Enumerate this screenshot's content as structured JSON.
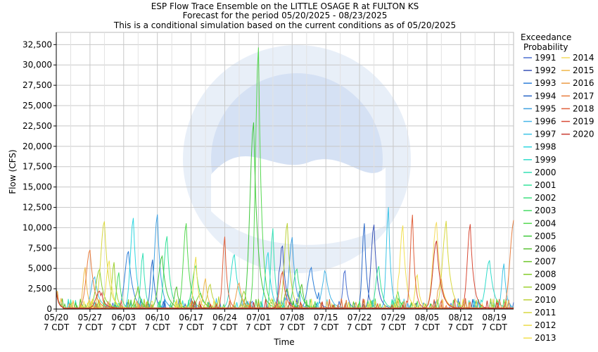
{
  "chart_data": {
    "type": "line",
    "title_lines": [
      "ESP Flow Trace Ensemble on the LITTLE OSAGE R at FULTON KS",
      "Forecast for the period 05/20/2025 - 08/23/2025",
      "This is a conditional simulation based on the current conditions as of 05/20/2025"
    ],
    "xlabel": "Time",
    "ylabel": "Flow (CFS)",
    "x_start": "2025-05-20",
    "x_end": "2025-08-23",
    "ylim": [
      0,
      34000
    ],
    "grid": true,
    "y_ticks": [
      0,
      2500,
      5000,
      7500,
      10000,
      12500,
      15000,
      17500,
      20000,
      22500,
      25000,
      27500,
      30000,
      32500
    ],
    "y_tick_labels": [
      "0",
      "2,500",
      "5,000",
      "7,500",
      "10,000",
      "12,500",
      "15,000",
      "17,500",
      "20,000",
      "22,500",
      "25,000",
      "27,500",
      "30,000",
      "32,500"
    ],
    "x_ticks": [
      {
        "date": "2025-05-20",
        "label1": "05/20",
        "label2": "7 CDT"
      },
      {
        "date": "2025-05-27",
        "label1": "05/27",
        "label2": "7 CDT"
      },
      {
        "date": "2025-06-03",
        "label1": "06/03",
        "label2": "7 CDT"
      },
      {
        "date": "2025-06-10",
        "label1": "06/10",
        "label2": "7 CDT"
      },
      {
        "date": "2025-06-17",
        "label1": "06/17",
        "label2": "7 CDT"
      },
      {
        "date": "2025-06-24",
        "label1": "06/24",
        "label2": "7 CDT"
      },
      {
        "date": "2025-07-01",
        "label1": "07/01",
        "label2": "7 CDT"
      },
      {
        "date": "2025-07-08",
        "label1": "07/08",
        "label2": "7 CDT"
      },
      {
        "date": "2025-07-15",
        "label1": "07/15",
        "label2": "7 CDT"
      },
      {
        "date": "2025-07-22",
        "label1": "07/22",
        "label2": "7 CDT"
      },
      {
        "date": "2025-07-29",
        "label1": "07/29",
        "label2": "7 CDT"
      },
      {
        "date": "2025-08-05",
        "label1": "08/05",
        "label2": "7 CDT"
      },
      {
        "date": "2025-08-12",
        "label1": "08/12",
        "label2": "7 CDT"
      },
      {
        "date": "2025-08-19",
        "label1": "08/19",
        "label2": "7 CDT"
      }
    ],
    "legend_title_lines": [
      "Exceedance",
      "Probability"
    ],
    "legend_placement": "right",
    "watermark": "NATIONAL OCEANIC AND ATMOSPHERIC ADMINISTRATION · U.S. DEPARTMENT OF COMMERCE · NOAA",
    "series": [
      {
        "name": "1991",
        "color": "#4a6fd0",
        "peaks": [
          [
            "2025-07-19",
            4600
          ]
        ]
      },
      {
        "name": "1992",
        "color": "#3a55b8",
        "peaks": [
          [
            "2025-07-06",
            7600
          ],
          [
            "2025-07-25",
            10300
          ]
        ]
      },
      {
        "name": "1993",
        "color": "#2f7fd8",
        "peaks": [
          [
            "2025-06-04",
            7000
          ],
          [
            "2025-07-12",
            5000
          ]
        ]
      },
      {
        "name": "1994",
        "color": "#2a68c8",
        "peaks": [
          [
            "2025-06-09",
            6000
          ],
          [
            "2025-07-23",
            10400
          ]
        ]
      },
      {
        "name": "1995",
        "color": "#3fa0e0",
        "peaks": [
          [
            "2025-06-10",
            11500
          ],
          [
            "2025-07-08",
            8700
          ]
        ]
      },
      {
        "name": "1996",
        "color": "#47b6e8",
        "peaks": [
          [
            "2025-05-28",
            3800
          ],
          [
            "2025-07-15",
            4300
          ]
        ]
      },
      {
        "name": "1997",
        "color": "#3cc4e6",
        "peaks": [
          [
            "2025-07-28",
            12400
          ],
          [
            "2025-08-21",
            5500
          ]
        ]
      },
      {
        "name": "1998",
        "color": "#2fd6e0",
        "peaks": [
          [
            "2025-06-05",
            11100
          ],
          [
            "2025-07-03",
            6900
          ]
        ]
      },
      {
        "name": "1999",
        "color": "#30dccb",
        "peaks": [
          [
            "2025-06-26",
            6600
          ],
          [
            "2025-08-18",
            5900
          ]
        ]
      },
      {
        "name": "2000",
        "color": "#33e0b5",
        "peaks": [
          [
            "2025-06-07",
            6800
          ],
          [
            "2025-07-04",
            9800
          ]
        ]
      },
      {
        "name": "2001",
        "color": "#36e29a",
        "peaks": [
          [
            "2025-06-12",
            8800
          ],
          [
            "2025-07-26",
            5200
          ]
        ]
      },
      {
        "name": "2002",
        "color": "#3de07e",
        "peaks": [
          [
            "2025-06-18",
            5200
          ],
          [
            "2025-07-09",
            4800
          ]
        ]
      },
      {
        "name": "2003",
        "color": "#48dc66",
        "peaks": [
          [
            "2025-06-02",
            4400
          ],
          [
            "2025-07-30",
            2000
          ]
        ]
      },
      {
        "name": "2004",
        "color": "#55d850",
        "peaks": [
          [
            "2025-06-16",
            10400
          ],
          [
            "2025-07-01",
            32000
          ]
        ]
      },
      {
        "name": "2005",
        "color": "#40c83c",
        "peaks": [
          [
            "2025-06-11",
            6400
          ],
          [
            "2025-06-30",
            22800
          ]
        ]
      },
      {
        "name": "2006",
        "color": "#56c030",
        "peaks": [
          [
            "2025-06-14",
            2600
          ],
          [
            "2025-07-10",
            3000
          ]
        ]
      },
      {
        "name": "2007",
        "color": "#6cc628",
        "peaks": [
          [
            "2025-06-06",
            2200
          ],
          [
            "2025-07-07",
            2400
          ]
        ]
      },
      {
        "name": "2008",
        "color": "#84cc2a",
        "peaks": [
          [
            "2025-05-29",
            4800
          ],
          [
            "2025-06-19",
            1800
          ]
        ]
      },
      {
        "name": "2009",
        "color": "#9ed030",
        "peaks": [
          [
            "2025-06-01",
            5600
          ],
          [
            "2025-06-28",
            2100
          ]
        ]
      },
      {
        "name": "2010",
        "color": "#bcd238",
        "peaks": [
          [
            "2025-06-21",
            2900
          ],
          [
            "2025-07-07",
            10500
          ]
        ]
      },
      {
        "name": "2011",
        "color": "#d8d840",
        "peaks": [
          [
            "2025-05-30",
            10700
          ],
          [
            "2025-08-09",
            10200
          ]
        ]
      },
      {
        "name": "2012",
        "color": "#ecdc48",
        "peaks": [
          [
            "2025-06-18",
            6300
          ],
          [
            "2025-08-03",
            4100
          ]
        ]
      },
      {
        "name": "2013",
        "color": "#f2e050",
        "peaks": [
          [
            "2025-05-31",
            5800
          ],
          [
            "2025-07-31",
            10200
          ]
        ]
      },
      {
        "name": "2014",
        "color": "#f4dc60",
        "peaks": [
          [
            "2025-08-07",
            10600
          ]
        ]
      },
      {
        "name": "2015",
        "color": "#f0b848",
        "peaks": [
          [
            "2025-05-26",
            5000
          ],
          [
            "2025-06-20",
            3700
          ]
        ]
      },
      {
        "name": "2016",
        "color": "#ec9c48",
        "peaks": [
          [
            "2025-06-27",
            3100
          ],
          [
            "2025-08-08",
            3600
          ]
        ]
      },
      {
        "name": "2017",
        "color": "#e87e40",
        "peaks": [
          [
            "2025-05-27",
            7200
          ],
          [
            "2025-08-23",
            10500
          ]
        ]
      },
      {
        "name": "2018",
        "color": "#e0603c",
        "peaks": [
          [
            "2025-06-24",
            8800
          ],
          [
            "2025-08-02",
            11500
          ]
        ]
      },
      {
        "name": "2019",
        "color": "#d84a36",
        "peaks": [
          [
            "2025-07-06",
            4500
          ],
          [
            "2025-08-14",
            10300
          ]
        ]
      },
      {
        "name": "2020",
        "color": "#c83a30",
        "peaks": [
          [
            "2025-05-29",
            2100
          ],
          [
            "2025-08-07",
            8300
          ]
        ]
      }
    ]
  }
}
